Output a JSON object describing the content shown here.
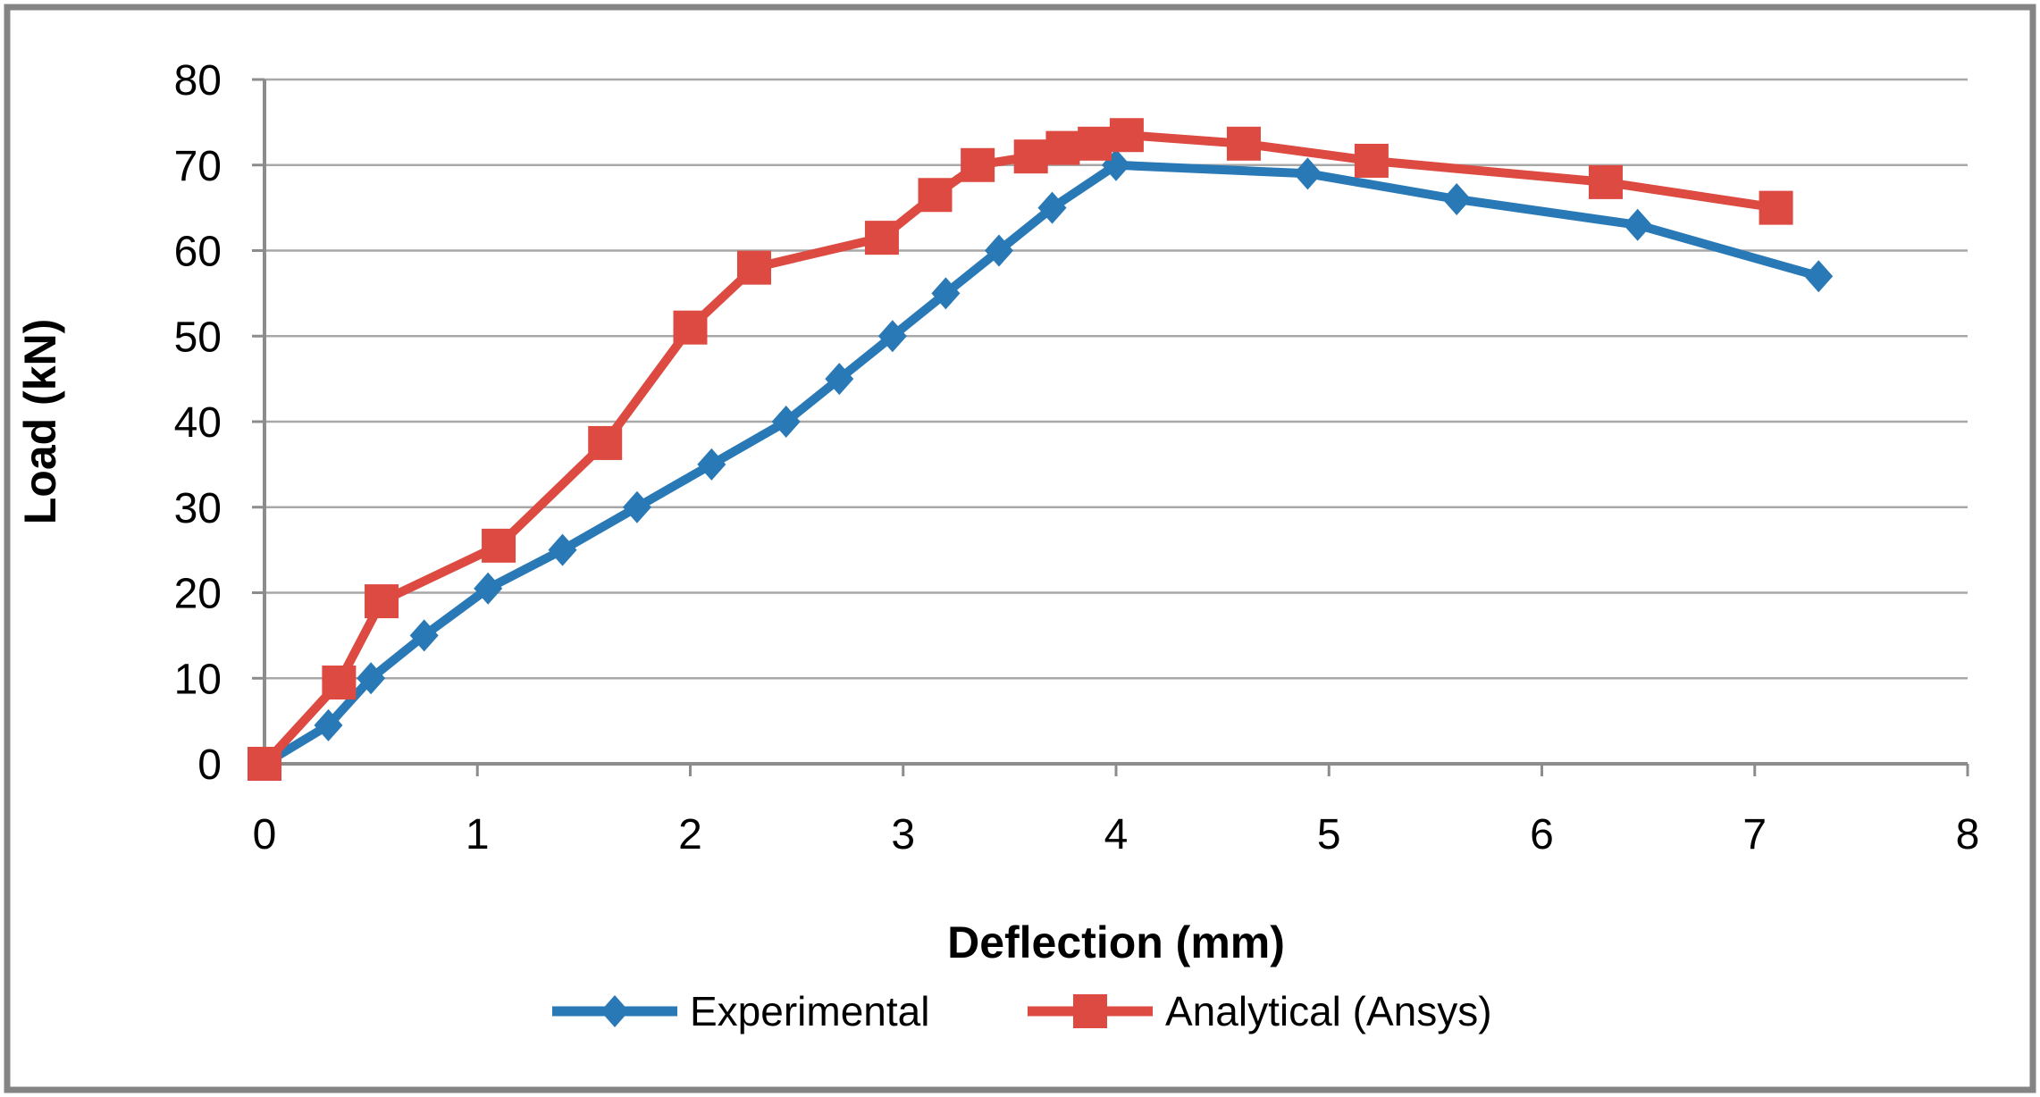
{
  "figure": {
    "kind": "excel-style line chart",
    "background": "#ffffff"
  },
  "colors": {
    "experimental_blue": "#2A79B7",
    "analytical_red": "#DC4A41",
    "gridline": "#A8A8A8",
    "axis": "#8C8C8C",
    "border": "#848484",
    "text": "#000000"
  },
  "chart_data": {
    "type": "line",
    "title": "",
    "xlabel": "Deflection (mm)",
    "ylabel": "Load (kN)",
    "xlim": [
      0,
      8
    ],
    "ylim": [
      0,
      80
    ],
    "x_ticks": [
      "0",
      "1",
      "2",
      "3",
      "4",
      "5",
      "6",
      "7",
      "8"
    ],
    "y_ticks": [
      "0",
      "10",
      "20",
      "30",
      "40",
      "50",
      "60",
      "70",
      "80"
    ],
    "grid": "horizontal",
    "legend_position": "bottom-center",
    "series": [
      {
        "name": "Experimental",
        "color": "#2A79B7",
        "marker": "diamond",
        "points": [
          [
            0,
            0
          ],
          [
            0.3,
            4.5
          ],
          [
            0.5,
            10
          ],
          [
            0.75,
            15
          ],
          [
            1.05,
            20.5
          ],
          [
            1.4,
            25
          ],
          [
            1.75,
            30
          ],
          [
            2.1,
            35
          ],
          [
            2.45,
            40
          ],
          [
            2.7,
            45
          ],
          [
            2.95,
            50
          ],
          [
            3.2,
            55
          ],
          [
            3.45,
            60
          ],
          [
            3.7,
            65
          ],
          [
            4.0,
            70
          ],
          [
            4.9,
            69
          ],
          [
            5.6,
            66
          ],
          [
            6.45,
            63
          ],
          [
            7.3,
            57
          ]
        ]
      },
      {
        "name": "Analytical (Ansys)",
        "color": "#DC4A41",
        "marker": "square",
        "points": [
          [
            0,
            0
          ],
          [
            0.35,
            9.5
          ],
          [
            0.55,
            19
          ],
          [
            1.1,
            25.5
          ],
          [
            1.6,
            37.5
          ],
          [
            2.0,
            51
          ],
          [
            2.3,
            58
          ],
          [
            2.9,
            61.5
          ],
          [
            3.15,
            66.5
          ],
          [
            3.35,
            70
          ],
          [
            3.6,
            71
          ],
          [
            3.75,
            72
          ],
          [
            3.9,
            72.5
          ],
          [
            4.05,
            73.5
          ],
          [
            4.6,
            72.5
          ],
          [
            5.2,
            70.5
          ],
          [
            6.3,
            68
          ],
          [
            7.1,
            65
          ]
        ]
      }
    ]
  }
}
